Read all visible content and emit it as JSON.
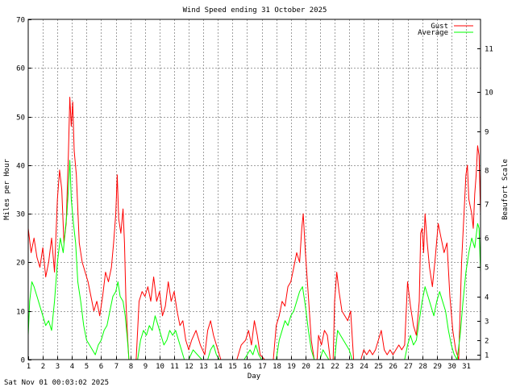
{
  "chart_data": {
    "type": "line",
    "title": "Wind Speed ending 31 October 2025",
    "xlabel": "Day",
    "ylabel": "Miles per Hour",
    "y2label": "Beaufort Scale",
    "footer": "Sat Nov 01 00:03:02 2025",
    "xlim": [
      1,
      32
    ],
    "ylim": [
      0,
      70
    ],
    "x_ticks": [
      "1",
      "2",
      "3",
      "4",
      "5",
      "6",
      "7",
      "8",
      "9",
      "10",
      "11",
      "12",
      "13",
      "14",
      "15",
      "16",
      "17",
      "18",
      "19",
      "20",
      "21",
      "22",
      "23",
      "24",
      "25",
      "26",
      "27",
      "28",
      "29",
      "30",
      "31"
    ],
    "y_ticks": [
      "0",
      "10",
      "20",
      "30",
      "40",
      "50",
      "60",
      "70"
    ],
    "beaufort_ticks": [
      {
        "label": "1",
        "mph": 1
      },
      {
        "label": "2",
        "mph": 4
      },
      {
        "label": "3",
        "mph": 8
      },
      {
        "label": "4",
        "mph": 13
      },
      {
        "label": "5",
        "mph": 19
      },
      {
        "label": "6",
        "mph": 25
      },
      {
        "label": "7",
        "mph": 32
      },
      {
        "label": "8",
        "mph": 39
      },
      {
        "label": "9",
        "mph": 47
      },
      {
        "label": "10",
        "mph": 55
      },
      {
        "label": "11",
        "mph": 64
      }
    ],
    "grid": true,
    "legend_position": "top-right",
    "series": [
      {
        "name": "Gust",
        "color": "#ff0000",
        "points": [
          [
            1.0,
            27
          ],
          [
            1.2,
            22
          ],
          [
            1.4,
            25
          ],
          [
            1.6,
            21
          ],
          [
            1.8,
            19
          ],
          [
            2.0,
            23
          ],
          [
            2.2,
            17
          ],
          [
            2.4,
            20
          ],
          [
            2.6,
            25
          ],
          [
            2.8,
            18
          ],
          [
            3.0,
            33
          ],
          [
            3.15,
            39
          ],
          [
            3.3,
            35
          ],
          [
            3.45,
            24
          ],
          [
            3.6,
            28
          ],
          [
            3.75,
            42
          ],
          [
            3.85,
            54
          ],
          [
            3.95,
            48
          ],
          [
            4.05,
            53
          ],
          [
            4.15,
            43
          ],
          [
            4.3,
            38
          ],
          [
            4.5,
            24
          ],
          [
            4.7,
            20
          ],
          [
            4.9,
            18
          ],
          [
            5.1,
            16
          ],
          [
            5.3,
            13
          ],
          [
            5.5,
            10
          ],
          [
            5.7,
            12
          ],
          [
            5.9,
            9
          ],
          [
            6.1,
            13
          ],
          [
            6.3,
            18
          ],
          [
            6.5,
            16
          ],
          [
            6.7,
            19
          ],
          [
            6.85,
            24
          ],
          [
            7.0,
            30
          ],
          [
            7.1,
            38
          ],
          [
            7.2,
            29
          ],
          [
            7.35,
            26
          ],
          [
            7.5,
            31
          ],
          [
            7.6,
            24
          ],
          [
            7.7,
            12
          ],
          [
            7.8,
            5
          ],
          [
            7.9,
            0
          ],
          [
            8.4,
            0
          ],
          [
            8.6,
            12
          ],
          [
            8.8,
            14
          ],
          [
            9.0,
            13
          ],
          [
            9.2,
            15
          ],
          [
            9.4,
            12
          ],
          [
            9.6,
            17
          ],
          [
            9.8,
            12
          ],
          [
            10.0,
            14
          ],
          [
            10.2,
            9
          ],
          [
            10.4,
            11
          ],
          [
            10.6,
            16
          ],
          [
            10.8,
            12
          ],
          [
            11.0,
            14
          ],
          [
            11.2,
            10
          ],
          [
            11.4,
            7
          ],
          [
            11.6,
            8
          ],
          [
            11.8,
            4
          ],
          [
            12.0,
            2
          ],
          [
            12.2,
            4
          ],
          [
            12.5,
            6
          ],
          [
            12.8,
            3
          ],
          [
            13.1,
            1
          ],
          [
            13.3,
            6
          ],
          [
            13.5,
            8
          ],
          [
            13.7,
            5
          ],
          [
            13.9,
            3
          ],
          [
            14.2,
            0
          ],
          [
            15.3,
            0
          ],
          [
            15.6,
            3
          ],
          [
            15.9,
            4
          ],
          [
            16.1,
            6
          ],
          [
            16.3,
            3
          ],
          [
            16.5,
            8
          ],
          [
            16.7,
            5
          ],
          [
            16.9,
            1
          ],
          [
            17.2,
            0
          ],
          [
            17.8,
            0
          ],
          [
            18.0,
            7
          ],
          [
            18.2,
            9
          ],
          [
            18.4,
            12
          ],
          [
            18.6,
            11
          ],
          [
            18.8,
            15
          ],
          [
            19.0,
            16
          ],
          [
            19.2,
            19
          ],
          [
            19.4,
            22
          ],
          [
            19.6,
            20
          ],
          [
            19.75,
            27
          ],
          [
            19.85,
            30
          ],
          [
            20.0,
            22
          ],
          [
            20.2,
            13
          ],
          [
            20.4,
            4
          ],
          [
            20.6,
            0
          ],
          [
            20.8,
            0
          ],
          [
            20.9,
            5
          ],
          [
            21.1,
            3
          ],
          [
            21.3,
            6
          ],
          [
            21.5,
            5
          ],
          [
            21.7,
            0
          ],
          [
            21.9,
            0
          ],
          [
            22.0,
            12
          ],
          [
            22.15,
            18
          ],
          [
            22.3,
            14
          ],
          [
            22.5,
            10
          ],
          [
            22.7,
            9
          ],
          [
            22.9,
            8
          ],
          [
            23.1,
            10
          ],
          [
            23.3,
            0
          ],
          [
            23.8,
            0
          ],
          [
            24.0,
            2
          ],
          [
            24.2,
            1
          ],
          [
            24.4,
            2
          ],
          [
            24.6,
            1
          ],
          [
            24.8,
            2
          ],
          [
            25.0,
            4
          ],
          [
            25.2,
            6
          ],
          [
            25.4,
            2
          ],
          [
            25.6,
            1
          ],
          [
            25.8,
            2
          ],
          [
            26.0,
            1
          ],
          [
            26.2,
            2
          ],
          [
            26.4,
            3
          ],
          [
            26.6,
            2
          ],
          [
            26.8,
            3
          ],
          [
            27.0,
            16
          ],
          [
            27.2,
            11
          ],
          [
            27.4,
            7
          ],
          [
            27.6,
            5
          ],
          [
            27.8,
            12
          ],
          [
            27.9,
            26
          ],
          [
            28.0,
            27
          ],
          [
            28.1,
            22
          ],
          [
            28.2,
            30
          ],
          [
            28.35,
            24
          ],
          [
            28.5,
            19
          ],
          [
            28.7,
            15
          ],
          [
            28.9,
            21
          ],
          [
            29.1,
            28
          ],
          [
            29.3,
            25
          ],
          [
            29.5,
            22
          ],
          [
            29.7,
            24
          ],
          [
            29.9,
            13
          ],
          [
            30.1,
            6
          ],
          [
            30.3,
            2
          ],
          [
            30.5,
            0
          ],
          [
            30.7,
            20
          ],
          [
            30.9,
            32
          ],
          [
            31.0,
            38
          ],
          [
            31.1,
            40
          ],
          [
            31.2,
            33
          ],
          [
            31.4,
            30
          ],
          [
            31.5,
            27
          ],
          [
            31.6,
            34
          ],
          [
            31.7,
            38
          ],
          [
            31.8,
            44
          ],
          [
            31.9,
            42
          ],
          [
            32.0,
            30
          ]
        ]
      },
      {
        "name": "Average",
        "color": "#00ff00",
        "points": [
          [
            1.0,
            5
          ],
          [
            1.1,
            12
          ],
          [
            1.25,
            16
          ],
          [
            1.4,
            15
          ],
          [
            1.6,
            13
          ],
          [
            1.8,
            11
          ],
          [
            2.0,
            9
          ],
          [
            2.2,
            7
          ],
          [
            2.4,
            8
          ],
          [
            2.6,
            6
          ],
          [
            2.8,
            12
          ],
          [
            3.0,
            20
          ],
          [
            3.2,
            25
          ],
          [
            3.4,
            22
          ],
          [
            3.55,
            27
          ],
          [
            3.65,
            30
          ],
          [
            3.75,
            35
          ],
          [
            3.85,
            41
          ],
          [
            3.95,
            33
          ],
          [
            4.1,
            28
          ],
          [
            4.25,
            24
          ],
          [
            4.4,
            16
          ],
          [
            4.6,
            12
          ],
          [
            4.8,
            7
          ],
          [
            5.0,
            4
          ],
          [
            5.2,
            3
          ],
          [
            5.4,
            2
          ],
          [
            5.6,
            1
          ],
          [
            5.8,
            3
          ],
          [
            6.0,
            4
          ],
          [
            6.2,
            6
          ],
          [
            6.4,
            7
          ],
          [
            6.6,
            10
          ],
          [
            6.8,
            13
          ],
          [
            7.0,
            14
          ],
          [
            7.15,
            16
          ],
          [
            7.3,
            13
          ],
          [
            7.5,
            12
          ],
          [
            7.65,
            9
          ],
          [
            7.8,
            4
          ],
          [
            7.9,
            0
          ],
          [
            8.5,
            0
          ],
          [
            8.7,
            4
          ],
          [
            8.9,
            6
          ],
          [
            9.1,
            5
          ],
          [
            9.3,
            7
          ],
          [
            9.5,
            6
          ],
          [
            9.7,
            9
          ],
          [
            9.9,
            7
          ],
          [
            10.1,
            5
          ],
          [
            10.3,
            3
          ],
          [
            10.5,
            4
          ],
          [
            10.7,
            6
          ],
          [
            10.9,
            5
          ],
          [
            11.1,
            6
          ],
          [
            11.3,
            4
          ],
          [
            11.5,
            2
          ],
          [
            11.7,
            0
          ],
          [
            12.0,
            0
          ],
          [
            12.3,
            2
          ],
          [
            12.6,
            1
          ],
          [
            12.9,
            0
          ],
          [
            13.3,
            0
          ],
          [
            13.5,
            2
          ],
          [
            13.7,
            3
          ],
          [
            13.9,
            1
          ],
          [
            14.1,
            0
          ],
          [
            15.8,
            0
          ],
          [
            16.0,
            1
          ],
          [
            16.2,
            2
          ],
          [
            16.4,
            1
          ],
          [
            16.6,
            3
          ],
          [
            16.8,
            1
          ],
          [
            17.0,
            0
          ],
          [
            18.0,
            0
          ],
          [
            18.2,
            4
          ],
          [
            18.4,
            6
          ],
          [
            18.6,
            8
          ],
          [
            18.8,
            7
          ],
          [
            19.0,
            9
          ],
          [
            19.2,
            10
          ],
          [
            19.4,
            12
          ],
          [
            19.6,
            14
          ],
          [
            19.8,
            15
          ],
          [
            20.0,
            11
          ],
          [
            20.2,
            6
          ],
          [
            20.4,
            2
          ],
          [
            20.6,
            0
          ],
          [
            21.0,
            0
          ],
          [
            21.2,
            2
          ],
          [
            21.4,
            1
          ],
          [
            21.6,
            0
          ],
          [
            22.0,
            0
          ],
          [
            22.2,
            6
          ],
          [
            22.4,
            5
          ],
          [
            22.6,
            4
          ],
          [
            22.8,
            3
          ],
          [
            23.0,
            2
          ],
          [
            23.2,
            0
          ],
          [
            26.8,
            0
          ],
          [
            27.0,
            3
          ],
          [
            27.2,
            5
          ],
          [
            27.4,
            3
          ],
          [
            27.6,
            4
          ],
          [
            27.8,
            8
          ],
          [
            28.0,
            12
          ],
          [
            28.2,
            15
          ],
          [
            28.4,
            13
          ],
          [
            28.6,
            11
          ],
          [
            28.8,
            9
          ],
          [
            29.0,
            12
          ],
          [
            29.2,
            14
          ],
          [
            29.4,
            12
          ],
          [
            29.6,
            10
          ],
          [
            29.8,
            6
          ],
          [
            30.0,
            3
          ],
          [
            30.2,
            1
          ],
          [
            30.4,
            0
          ],
          [
            30.6,
            5
          ],
          [
            30.8,
            12
          ],
          [
            31.0,
            18
          ],
          [
            31.2,
            22
          ],
          [
            31.4,
            25
          ],
          [
            31.6,
            23
          ],
          [
            31.8,
            28
          ],
          [
            31.9,
            27
          ],
          [
            32.0,
            18
          ]
        ]
      }
    ]
  }
}
